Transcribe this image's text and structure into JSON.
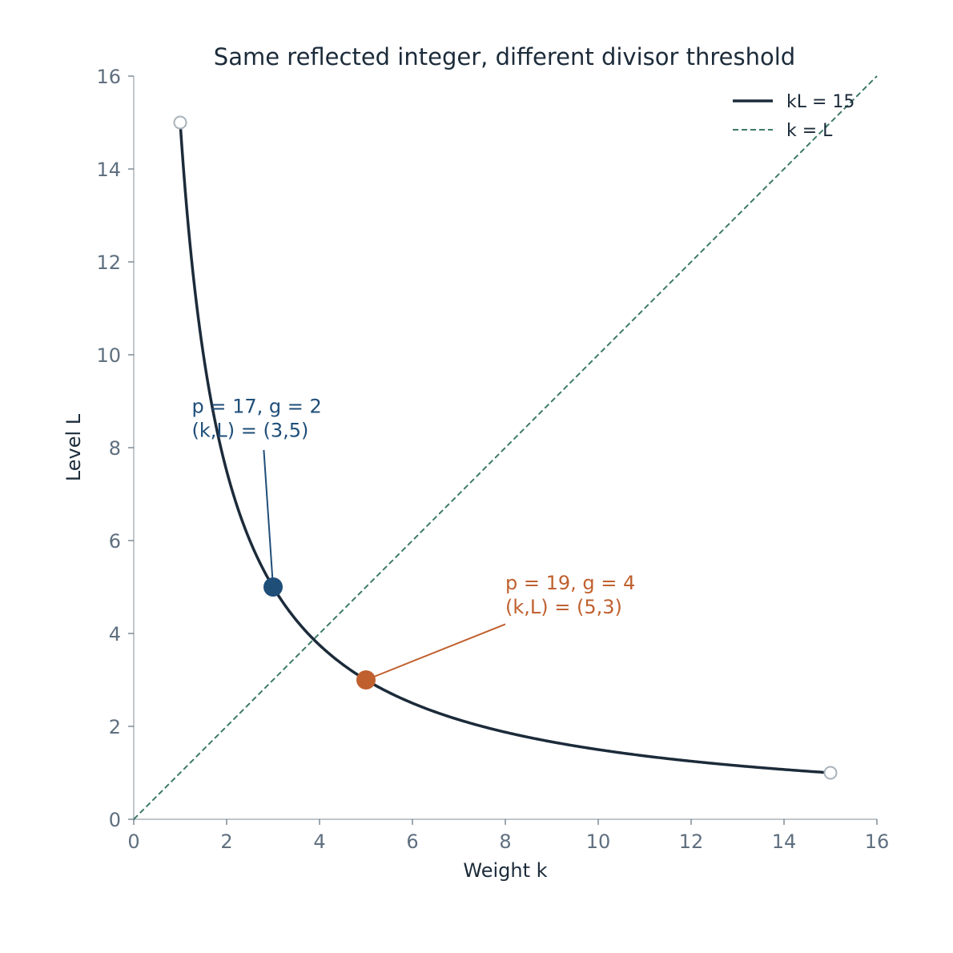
{
  "chart_data": {
    "type": "line",
    "title": "Same reflected integer, different divisor threshold",
    "xlabel": "Weight k",
    "ylabel": "Level L",
    "xlim": [
      0,
      16
    ],
    "ylim": [
      0,
      16
    ],
    "xticks": [
      "0",
      "2",
      "4",
      "6",
      "8",
      "10",
      "12",
      "14",
      "16"
    ],
    "yticks": [
      "0",
      "2",
      "4",
      "6",
      "8",
      "10",
      "12",
      "14",
      "16"
    ],
    "grid": false,
    "legend_position": "top-right",
    "series": [
      {
        "name": "kL = 15",
        "style": "solid",
        "color": "#1c2b3a",
        "function": "L = 15 / k",
        "domain": [
          1,
          15
        ]
      },
      {
        "name": "k = L",
        "style": "dashed",
        "color": "#3d7a68",
        "function": "L = k",
        "domain": [
          0,
          16
        ]
      }
    ],
    "endpoints": [
      {
        "x": 1,
        "y": 15,
        "style": "open-circle"
      },
      {
        "x": 15,
        "y": 1,
        "style": "open-circle"
      }
    ],
    "highlighted_points": [
      {
        "x": 3,
        "y": 5,
        "color": "#1f4e79",
        "label_lines": [
          "p = 17, g = 2",
          "(k,L) = (3,5)"
        ],
        "label_anchor": [
          1.25,
          8.75
        ],
        "leader_from": [
          2.8,
          7.95
        ]
      },
      {
        "x": 5,
        "y": 3,
        "color": "#c0602f",
        "label_lines": [
          "p = 19, g = 4",
          "(k,L) = (5,3)"
        ],
        "label_anchor": [
          8.0,
          4.95
        ],
        "leader_from": [
          8.0,
          4.2
        ]
      }
    ]
  }
}
